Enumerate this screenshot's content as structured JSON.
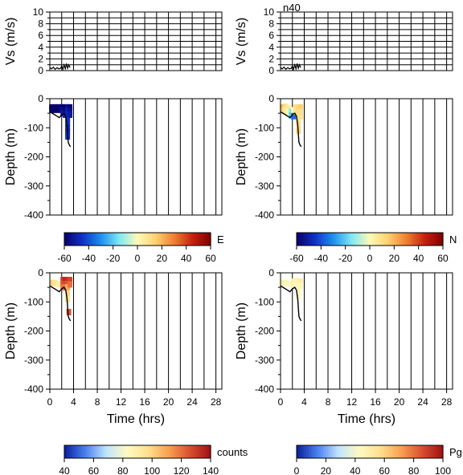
{
  "figure_title": "n40",
  "colorbar_names": {
    "E": "E",
    "N": "N",
    "counts": "counts",
    "Pg": "Pg"
  },
  "chart_data": [
    {
      "id": "vs_left",
      "type": "line",
      "ylabel": "Vs (m/s)",
      "xlim": [
        0,
        29
      ],
      "ylim": [
        0,
        10
      ],
      "yticks": [
        "0",
        "2",
        "4",
        "6",
        "8",
        "10"
      ],
      "grid": true,
      "series": [
        {
          "x": [
            0,
            0.3,
            0.6,
            0.9,
            1.2,
            1.5,
            1.8,
            2.0,
            2.2,
            2.4,
            2.6,
            2.8,
            3.0,
            3.2,
            3.4
          ],
          "y": [
            0.5,
            0.3,
            0.6,
            0.2,
            0.5,
            0.3,
            0.4,
            0.8,
            0.2,
            1.0,
            0.3,
            1.2,
            0.4,
            1.0,
            0.5
          ]
        }
      ]
    },
    {
      "id": "vs_right",
      "type": "line",
      "ylabel": "Vs (m/s)",
      "xlim": [
        0,
        29
      ],
      "ylim": [
        0,
        10
      ],
      "yticks": [
        "0",
        "2",
        "4",
        "6",
        "8",
        "10"
      ],
      "grid": true,
      "series": [
        {
          "x": [
            0,
            0.3,
            0.6,
            0.9,
            1.2,
            1.5,
            1.8,
            2.0,
            2.2,
            2.4,
            2.6,
            2.8,
            3.0,
            3.2,
            3.4
          ],
          "y": [
            0.5,
            0.3,
            0.6,
            0.2,
            0.5,
            0.3,
            0.4,
            0.8,
            0.2,
            1.0,
            0.3,
            1.2,
            0.4,
            1.0,
            0.5
          ]
        }
      ]
    },
    {
      "id": "depth_E",
      "type": "scatter",
      "ylabel": "Depth (m)",
      "xlim": [
        0,
        29
      ],
      "ylim": [
        -400,
        0
      ],
      "yticks": [
        "0",
        "-100",
        "-200",
        "-300",
        "-400"
      ],
      "colorbar": "E",
      "track": {
        "x": [
          0,
          0.4,
          0.8,
          1.2,
          1.6,
          2.0,
          2.4,
          2.7,
          2.9,
          3.1,
          3.3,
          3.5
        ],
        "y": [
          -45,
          -50,
          -55,
          -60,
          -65,
          -55,
          -50,
          -60,
          -90,
          -150,
          -160,
          -165
        ]
      },
      "points": [
        {
          "x": 0.3,
          "y": -30,
          "c": -60
        },
        {
          "x": 0.3,
          "y": -38,
          "c": -58
        },
        {
          "x": 0.8,
          "y": -30,
          "c": -60
        },
        {
          "x": 0.8,
          "y": -38,
          "c": -60
        },
        {
          "x": 1.3,
          "y": -30,
          "c": -59
        },
        {
          "x": 1.3,
          "y": -38,
          "c": -60
        },
        {
          "x": 1.8,
          "y": -30,
          "c": -60
        },
        {
          "x": 1.8,
          "y": -38,
          "c": -58
        },
        {
          "x": 2.2,
          "y": -30,
          "c": -60
        },
        {
          "x": 2.2,
          "y": -40,
          "c": -55
        },
        {
          "x": 2.2,
          "y": -50,
          "c": -52
        },
        {
          "x": 2.6,
          "y": -30,
          "c": -60
        },
        {
          "x": 2.6,
          "y": -42,
          "c": -58
        },
        {
          "x": 2.6,
          "y": -55,
          "c": -50
        },
        {
          "x": 3.0,
          "y": -30,
          "c": -55
        },
        {
          "x": 3.0,
          "y": -42,
          "c": -50
        },
        {
          "x": 3.0,
          "y": -55,
          "c": -48
        },
        {
          "x": 3.0,
          "y": -70,
          "c": -45
        },
        {
          "x": 3.0,
          "y": -85,
          "c": -45
        },
        {
          "x": 3.0,
          "y": -100,
          "c": -48
        },
        {
          "x": 3.0,
          "y": -115,
          "c": -50
        },
        {
          "x": 3.0,
          "y": -130,
          "c": -45
        },
        {
          "x": 3.4,
          "y": -30,
          "c": -58
        },
        {
          "x": 3.4,
          "y": -42,
          "c": -55
        },
        {
          "x": 3.4,
          "y": -55,
          "c": -52
        }
      ]
    },
    {
      "id": "depth_N",
      "type": "scatter",
      "ylabel": "Depth (m)",
      "xlim": [
        0,
        29
      ],
      "ylim": [
        -400,
        0
      ],
      "yticks": [
        "0",
        "-100",
        "-200",
        "-300",
        "-400"
      ],
      "colorbar": "N",
      "track": {
        "x": [
          0,
          0.4,
          0.8,
          1.2,
          1.6,
          2.0,
          2.4,
          2.7,
          2.9,
          3.1,
          3.3,
          3.5
        ],
        "y": [
          -45,
          -50,
          -55,
          -60,
          -65,
          -55,
          -50,
          -60,
          -90,
          -150,
          -160,
          -165
        ]
      },
      "points": [
        {
          "x": 0.3,
          "y": -30,
          "c": 20
        },
        {
          "x": 0.3,
          "y": -40,
          "c": 15
        },
        {
          "x": 0.8,
          "y": -28,
          "c": 10
        },
        {
          "x": 0.8,
          "y": -40,
          "c": 5
        },
        {
          "x": 1.3,
          "y": -32,
          "c": 5
        },
        {
          "x": 1.3,
          "y": -45,
          "c": 2
        },
        {
          "x": 1.8,
          "y": -45,
          "c": -15
        },
        {
          "x": 1.8,
          "y": -58,
          "c": -20
        },
        {
          "x": 2.2,
          "y": -40,
          "c": 0
        },
        {
          "x": 2.2,
          "y": -60,
          "c": -35
        },
        {
          "x": 2.6,
          "y": -30,
          "c": 10
        },
        {
          "x": 2.6,
          "y": -45,
          "c": 8
        },
        {
          "x": 3.0,
          "y": -30,
          "c": 12
        },
        {
          "x": 3.0,
          "y": -50,
          "c": 10
        },
        {
          "x": 3.0,
          "y": -70,
          "c": 8
        },
        {
          "x": 3.0,
          "y": -90,
          "c": 10
        },
        {
          "x": 3.0,
          "y": -110,
          "c": 12
        },
        {
          "x": 3.4,
          "y": -30,
          "c": 15
        },
        {
          "x": 3.4,
          "y": -45,
          "c": 10
        },
        {
          "x": 3.4,
          "y": -60,
          "c": 8
        }
      ]
    },
    {
      "id": "depth_counts",
      "type": "scatter",
      "ylabel": "Depth (m)",
      "xlabel": "Time (hrs)",
      "xlim": [
        0,
        29
      ],
      "ylim": [
        -400,
        0
      ],
      "xticks": [
        "0",
        "4",
        "8",
        "12",
        "16",
        "20",
        "24",
        "28"
      ],
      "yticks": [
        "0",
        "-100",
        "-200",
        "-300",
        "-400"
      ],
      "colorbar": "counts",
      "track": {
        "x": [
          0,
          0.4,
          0.8,
          1.2,
          1.6,
          2.0,
          2.4,
          2.7,
          2.9,
          3.1,
          3.3,
          3.5
        ],
        "y": [
          -45,
          -50,
          -55,
          -60,
          -65,
          -55,
          -50,
          -60,
          -90,
          -150,
          -160,
          -165
        ]
      },
      "points": [
        {
          "x": 0.4,
          "y": -35,
          "c": 100
        },
        {
          "x": 0.9,
          "y": -35,
          "c": 95
        },
        {
          "x": 1.5,
          "y": -40,
          "c": 90
        },
        {
          "x": 2.2,
          "y": -25,
          "c": 130
        },
        {
          "x": 2.2,
          "y": -38,
          "c": 125
        },
        {
          "x": 2.2,
          "y": -50,
          "c": 120
        },
        {
          "x": 2.6,
          "y": -25,
          "c": 135
        },
        {
          "x": 2.6,
          "y": -38,
          "c": 128
        },
        {
          "x": 2.6,
          "y": -50,
          "c": 118
        },
        {
          "x": 3.0,
          "y": -25,
          "c": 132
        },
        {
          "x": 3.0,
          "y": -38,
          "c": 125
        },
        {
          "x": 3.0,
          "y": -50,
          "c": 110
        },
        {
          "x": 3.0,
          "y": -70,
          "c": 100
        },
        {
          "x": 3.0,
          "y": -90,
          "c": 95
        },
        {
          "x": 3.4,
          "y": -25,
          "c": 128
        },
        {
          "x": 3.4,
          "y": -40,
          "c": 120
        },
        {
          "x": 3.2,
          "y": -135,
          "c": 125
        }
      ]
    },
    {
      "id": "depth_Pg",
      "type": "scatter",
      "ylabel": "Depth (m)",
      "xlabel": "Time (hrs)",
      "xlim": [
        0,
        29
      ],
      "ylim": [
        -400,
        0
      ],
      "xticks": [
        "0",
        "4",
        "8",
        "12",
        "16",
        "20",
        "24",
        "28"
      ],
      "yticks": [
        "0",
        "-100",
        "-200",
        "-300",
        "-400"
      ],
      "colorbar": "Pg",
      "track": {
        "x": [
          0,
          0.4,
          0.8,
          1.2,
          1.6,
          2.0,
          2.4,
          2.7,
          2.9,
          3.1,
          3.3,
          3.5
        ],
        "y": [
          -45,
          -50,
          -55,
          -60,
          -65,
          -55,
          -50,
          -60,
          -90,
          -150,
          -160,
          -165
        ]
      },
      "points": [
        {
          "x": 0.4,
          "y": -35,
          "c": 48
        },
        {
          "x": 0.9,
          "y": -35,
          "c": 45
        },
        {
          "x": 1.5,
          "y": -38,
          "c": 42
        },
        {
          "x": 2.2,
          "y": -30,
          "c": 50
        },
        {
          "x": 2.2,
          "y": -42,
          "c": 47
        },
        {
          "x": 2.6,
          "y": -28,
          "c": 46
        },
        {
          "x": 2.6,
          "y": -42,
          "c": 44
        },
        {
          "x": 3.0,
          "y": -30,
          "c": 48
        },
        {
          "x": 3.0,
          "y": -45,
          "c": 46
        },
        {
          "x": 3.0,
          "y": -60,
          "c": 44
        },
        {
          "x": 3.0,
          "y": -80,
          "c": 42
        },
        {
          "x": 3.4,
          "y": -30,
          "c": 50
        },
        {
          "x": 3.4,
          "y": -45,
          "c": 45
        }
      ]
    }
  ],
  "colorbars": [
    {
      "id": "E",
      "label": "E",
      "ticks": [
        "-60",
        "-40",
        "-20",
        "0",
        "20",
        "40",
        "60"
      ],
      "range": [
        -60,
        60
      ],
      "scheme": "diverging"
    },
    {
      "id": "N",
      "label": "N",
      "ticks": [
        "-60",
        "-40",
        "-20",
        "0",
        "20",
        "40",
        "60"
      ],
      "range": [
        -60,
        60
      ],
      "scheme": "diverging"
    },
    {
      "id": "counts",
      "label": "counts",
      "ticks": [
        "40",
        "60",
        "80",
        "100",
        "120",
        "140"
      ],
      "range": [
        40,
        140
      ],
      "scheme": "counts"
    },
    {
      "id": "Pg",
      "label": "Pg",
      "ticks": [
        "0",
        "20",
        "40",
        "60",
        "80",
        "100"
      ],
      "range": [
        0,
        100
      ],
      "scheme": "counts"
    }
  ],
  "colors": {
    "scale": [
      "#08006b",
      "#1030c8",
      "#1e8ff0",
      "#7fe8f4",
      "#fff9b8",
      "#ffd070",
      "#f08030",
      "#c82010",
      "#800000"
    ]
  }
}
